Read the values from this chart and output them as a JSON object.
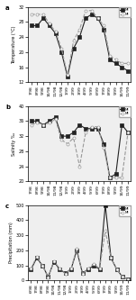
{
  "x_labels_temp": [
    "7/98",
    "8/98",
    "9/98",
    "10/98",
    "11/98",
    "12/98",
    "1/99",
    "2/99",
    "3/99",
    "4/99",
    "5/99",
    "6/99",
    "7/99",
    "8/99",
    "9/99",
    "10/99",
    "11/99"
  ],
  "temp_MI": [
    27,
    27,
    29,
    27,
    25,
    20,
    13.5,
    21,
    24,
    29,
    30,
    29,
    26,
    18,
    17,
    16,
    15
  ],
  "temp_MI2": [
    30,
    30,
    30,
    27.5,
    25.5,
    21,
    14,
    23,
    26,
    31,
    31,
    29,
    27,
    19,
    18,
    17,
    17
  ],
  "temp_ylim": [
    12,
    32
  ],
  "temp_yticks": [
    12,
    14,
    16,
    18,
    20,
    22,
    24,
    26,
    28,
    30,
    32
  ],
  "temp_ylabel": "Temperature (°C)",
  "x_labels_sal": [
    "7/98",
    "8/98",
    "9/98",
    "10/98",
    "11/98",
    "12/98",
    "1/99",
    "2/99",
    "3/99",
    "4/99",
    "5/99",
    "6/99",
    "7/99",
    "8/99",
    "9/99",
    "10/99",
    "11/99"
  ],
  "sal_MI": [
    36,
    36,
    35,
    36,
    37,
    32,
    32,
    33,
    35,
    34,
    34,
    34,
    30,
    21,
    22,
    35,
    33
  ],
  "sal_MI2": [
    35,
    35.5,
    35,
    35.5,
    36.5,
    31,
    30,
    31.5,
    24,
    33,
    34.5,
    34.5,
    29,
    21,
    21,
    21,
    33
  ],
  "sal_ylim": [
    20,
    40
  ],
  "sal_yticks": [
    20,
    22,
    24,
    26,
    28,
    30,
    32,
    34,
    36,
    38,
    40
  ],
  "sal_ylabel": "Salinity ‰",
  "x_labels_precip": [
    "6/98",
    "7/98",
    "8/98",
    "9/98",
    "10/98",
    "11/98",
    "12/98",
    "1/99",
    "2/99",
    "3/99",
    "4/99",
    "5/99",
    "6/99",
    "7/99",
    "8/99",
    "9/99",
    "10/99",
    "11/99"
  ],
  "precip_MI": [
    75,
    150,
    100,
    25,
    125,
    75,
    50,
    75,
    200,
    50,
    75,
    100,
    75,
    500,
    150,
    75,
    25,
    10
  ],
  "precip_MI2": [
    80,
    160,
    100,
    20,
    130,
    80,
    45,
    80,
    210,
    45,
    80,
    110,
    80,
    330,
    150,
    75,
    25,
    10
  ],
  "precip_ylim": [
    0,
    500
  ],
  "precip_yticks": [
    0,
    100,
    200,
    300,
    400,
    500
  ],
  "precip_ylabel": "Precipitation (mm)",
  "line1_color": "#222222",
  "line2_color": "#999999",
  "marker1": "s",
  "marker2": "o",
  "legend_labels": [
    "MI",
    "MI"
  ],
  "bg_color": "#efefef",
  "panel_labels": [
    "a",
    "b",
    "c"
  ]
}
